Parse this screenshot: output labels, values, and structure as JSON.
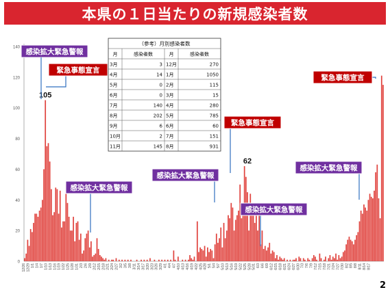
{
  "page": {
    "title": "本県の１日当たりの新規感染者数",
    "page_number": "2"
  },
  "colors": {
    "title_bg": "#d9252f",
    "bar": "#e0433e",
    "purple_box": "#7030a0",
    "red_box": "#c00000",
    "arrow": "#2f6fbf"
  },
  "chart_data": {
    "type": "bar",
    "ylim": [
      0,
      140
    ],
    "yticks": [
      0,
      20,
      40,
      60,
      80,
      100,
      120,
      140
    ],
    "grid": false,
    "x_tick_labels": [
      "12/26",
      "12/29",
      "1/1",
      "1/4",
      "1/7",
      "1/10",
      "1/13",
      "1/16",
      "1/19",
      "1/22",
      "1/25",
      "1/28",
      "1/31",
      "2/3",
      "2/6",
      "2/9",
      "2/12",
      "2/15",
      "2/18",
      "2/21",
      "2/24",
      "2/27",
      "3/2",
      "3/5",
      "3/8",
      "3/11",
      "3/14",
      "3/17",
      "3/20",
      "3/23",
      "3/26",
      "3/29",
      "4/1",
      "4/4",
      "4/7",
      "4/10",
      "4/13",
      "4/16",
      "4/19",
      "4/22",
      "4/25",
      "4/28",
      "5/1",
      "5/4",
      "5/7",
      "5/10",
      "5/13",
      "5/16",
      "5/19",
      "5/22",
      "5/25",
      "5/28",
      "5/31",
      "6/3",
      "6/6",
      "6/9",
      "6/12",
      "6/15",
      "6/18",
      "6/21",
      "6/24",
      "6/27",
      "6/30",
      "7/3",
      "7/6",
      "7/9",
      "7/12",
      "7/15",
      "7/18",
      "7/21",
      "7/24",
      "7/27",
      "7/30",
      "8/2",
      "8/5",
      "8/8",
      "8/11",
      "8/14",
      "8/17"
    ],
    "values": [
      2,
      5,
      14,
      10,
      21,
      19,
      25,
      31,
      31,
      29,
      33,
      35,
      40,
      60,
      105,
      75,
      77,
      65,
      47,
      30,
      32,
      48,
      47,
      31,
      46,
      22,
      26,
      26,
      50,
      38,
      29,
      20,
      20,
      29,
      13,
      25,
      26,
      14,
      18,
      5,
      7,
      15,
      18,
      20,
      9,
      13,
      3,
      4,
      5,
      15,
      8,
      4,
      3,
      2,
      1,
      2,
      0,
      1,
      0,
      1,
      1,
      0,
      2,
      0,
      1,
      0,
      1,
      0,
      1,
      0,
      1,
      0,
      1,
      0,
      0,
      0,
      1,
      0,
      0,
      1,
      0,
      1,
      0,
      1,
      0,
      2,
      0,
      0,
      1,
      0,
      0,
      1,
      0,
      1,
      0,
      1,
      0,
      1,
      0,
      1,
      0,
      7,
      1,
      0,
      3,
      0,
      0,
      1,
      0,
      1,
      0,
      1,
      4,
      2,
      1,
      3,
      0,
      26,
      6,
      9,
      8,
      7,
      10,
      3,
      9,
      6,
      8,
      7,
      2,
      11,
      18,
      12,
      15,
      22,
      9,
      25,
      15,
      20,
      30,
      28,
      38,
      35,
      20,
      27,
      30,
      33,
      50,
      28,
      32,
      62,
      55,
      45,
      20,
      44,
      38,
      30,
      25,
      30,
      20,
      30,
      11,
      20,
      8,
      10,
      7,
      9,
      12,
      5,
      7,
      6,
      2,
      4,
      1,
      3,
      2,
      1,
      2,
      0,
      1,
      0,
      1,
      0,
      1,
      1,
      2,
      0,
      3,
      2,
      0,
      2,
      1,
      0,
      2,
      1,
      0,
      2,
      4,
      3,
      1,
      0,
      5,
      2,
      0,
      1,
      3,
      0,
      2,
      4,
      1,
      3,
      2,
      5,
      1,
      4,
      2,
      3,
      6,
      7,
      11,
      14,
      16,
      14,
      13,
      11,
      14,
      17,
      19,
      26,
      33,
      31,
      37,
      35,
      33,
      40,
      44,
      42,
      41,
      46,
      58,
      63,
      41,
      28,
      121,
      115
    ],
    "peaks": [
      {
        "label": "105",
        "value": 105
      },
      {
        "label": "62",
        "value": 62
      },
      {
        "label": "121",
        "value": 121
      }
    ],
    "annotations": [
      {
        "text": "感染拡大緊急警報",
        "style": "purple"
      },
      {
        "text": "緊急事態宣言",
        "style": "red"
      },
      {
        "text": "感染拡大緊急警報",
        "style": "purple"
      },
      {
        "text": "緊急事態宣言",
        "style": "red"
      },
      {
        "text": "感染拡大緊急警報",
        "style": "purple"
      },
      {
        "text": "感染拡大緊急警報",
        "style": "purple"
      },
      {
        "text": "緊急事態宣言",
        "style": "red"
      },
      {
        "text": "感染拡大緊急警報",
        "style": "purple"
      }
    ]
  },
  "monthly_table": {
    "caption": "（参考）月別感染者数",
    "headers": [
      "月",
      "感染者数",
      "月",
      "感染者数"
    ],
    "rows": [
      [
        "3月",
        "3",
        "12月",
        "270"
      ],
      [
        "4月",
        "14",
        "1月",
        "1050"
      ],
      [
        "5月",
        "0",
        "2月",
        "115"
      ],
      [
        "6月",
        "0",
        "3月",
        "15"
      ],
      [
        "7月",
        "140",
        "4月",
        "280"
      ],
      [
        "8月",
        "202",
        "5月",
        "785"
      ],
      [
        "9月",
        "6",
        "6月",
        "60"
      ],
      [
        "10月",
        "2",
        "7月",
        "151"
      ],
      [
        "11月",
        "145",
        "8月",
        "931"
      ]
    ]
  }
}
